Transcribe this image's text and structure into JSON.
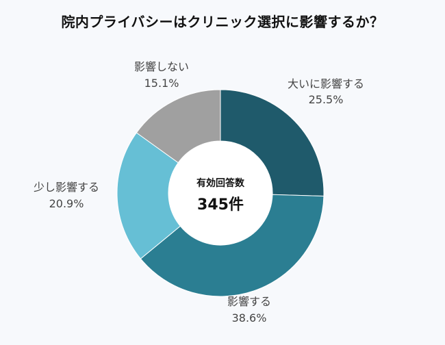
{
  "chart_data": {
    "type": "pie",
    "title": "院内プライバシーはクリニック選択に影響するか？",
    "center_caption": "有効回答数",
    "center_total": "345件",
    "unit": "%",
    "slices": [
      {
        "label": "大いに影響する",
        "value": 25.5,
        "display": "25.5%",
        "color": "#1f5a6b"
      },
      {
        "label": "影響する",
        "value": 38.6,
        "display": "38.6%",
        "color": "#2b7e92"
      },
      {
        "label": "少し影響する",
        "value": 20.9,
        "display": "20.9%",
        "color": "#66bfd5"
      },
      {
        "label": "影響しない",
        "value": 15.1,
        "display": "15.1%",
        "color": "#a0a0a0"
      }
    ]
  }
}
